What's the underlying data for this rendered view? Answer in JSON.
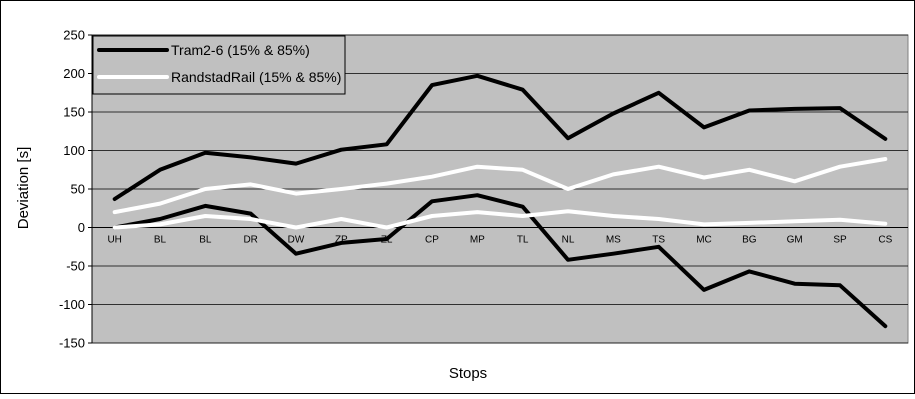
{
  "chart_data": {
    "type": "line",
    "title": "",
    "xlabel": "Stops",
    "ylabel": "Deviation [s]",
    "ylim": [
      -150,
      250
    ],
    "yticks": [
      -150,
      -100,
      -50,
      0,
      50,
      100,
      150,
      200,
      250
    ],
    "grid": true,
    "legend_position": "top-left",
    "background_color": "#c0c0c0",
    "categories": [
      "UH",
      "BL",
      "BL",
      "DR",
      "DW",
      "ZP",
      "ZL",
      "CP",
      "MP",
      "TL",
      "NL",
      "MS",
      "TS",
      "MC",
      "BG",
      "GM",
      "SP",
      "CS"
    ],
    "series": [
      {
        "name": "Tram2-6 (15% & 85%)",
        "color": "#000000",
        "upper": [
          37,
          75,
          97,
          91,
          83,
          101,
          108,
          185,
          197,
          179,
          116,
          148,
          175,
          130,
          152,
          154,
          155,
          115
        ],
        "lower": [
          0,
          11,
          28,
          18,
          -34,
          -20,
          -15,
          34,
          42,
          27,
          -42,
          -34,
          -25,
          -81,
          -57,
          -73,
          -75,
          -128
        ]
      },
      {
        "name": "RandstadRail (15% & 85%)",
        "color": "#ffffff",
        "upper": [
          20,
          31,
          50,
          56,
          44,
          50,
          57,
          66,
          79,
          75,
          50,
          69,
          79,
          65,
          75,
          60,
          79,
          89
        ],
        "lower": [
          0,
          4,
          15,
          11,
          0,
          11,
          0,
          15,
          20,
          15,
          21,
          15,
          11,
          4,
          6,
          8,
          10,
          5
        ]
      }
    ]
  }
}
